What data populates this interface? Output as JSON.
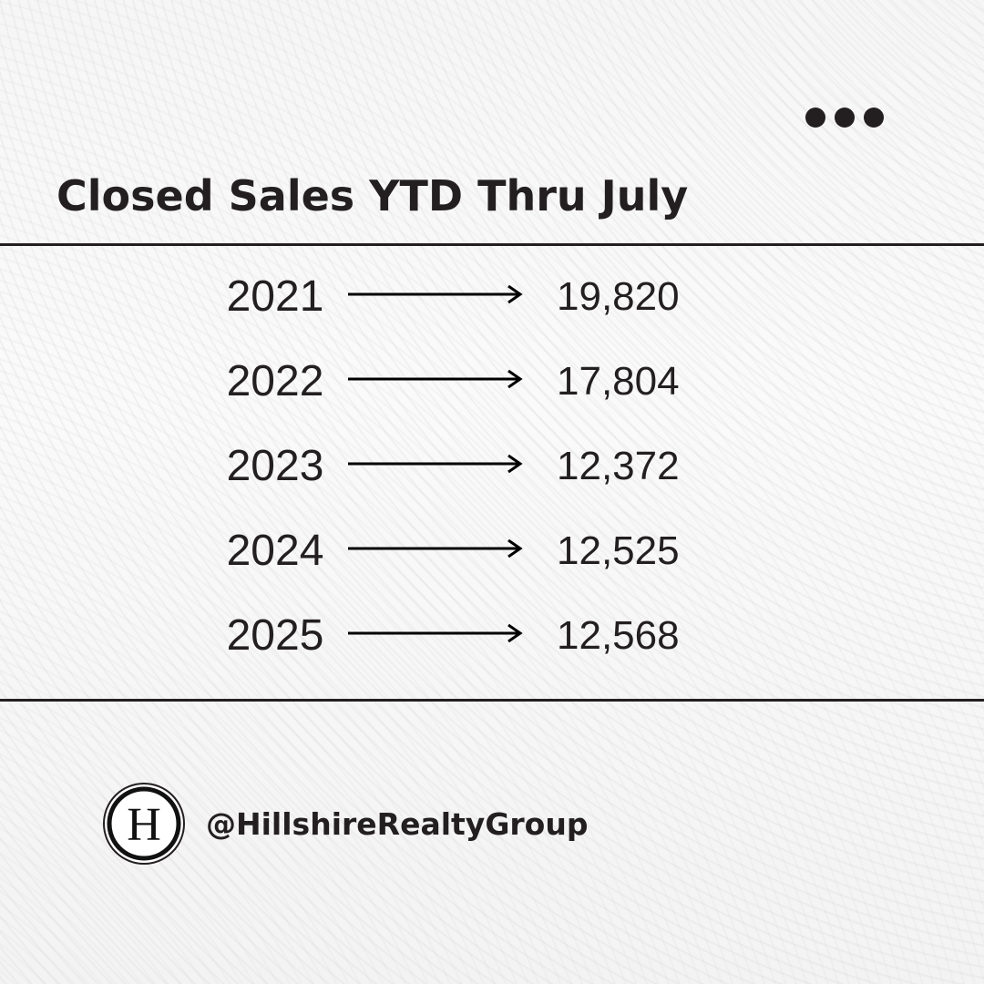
{
  "title": "Closed Sales YTD Thru July",
  "rows": [
    {
      "year": "2021",
      "value": "19,820"
    },
    {
      "year": "2022",
      "value": "17,804"
    },
    {
      "year": "2023",
      "value": "12,372"
    },
    {
      "year": "2024",
      "value": "12,525"
    },
    {
      "year": "2025",
      "value": "12,568"
    }
  ],
  "brand": {
    "logo_letter": "H",
    "handle": "@HillshireRealtyGroup"
  },
  "icons": {
    "menu": "more-dots-icon",
    "arrow": "right-arrow-icon"
  },
  "colors": {
    "text": "#231f20",
    "background": "#f7f7f7"
  }
}
